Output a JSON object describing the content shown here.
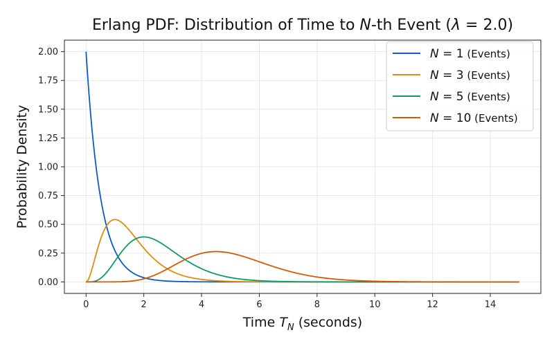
{
  "chart_data": {
    "type": "line",
    "title": "Erlang PDF: Distribution of Time to N-th Event (λ = 2.0)",
    "title_parts": {
      "prefix": "Erlang PDF: Distribution of Time to ",
      "var": "N",
      "suffix": "-th Event (",
      "lambda_sym": "λ",
      "lambda_eq": " = 2.0)"
    },
    "xlabel": "Time T_N (seconds)",
    "xlabel_parts": {
      "prefix": "Time ",
      "var": "T",
      "sub": "N",
      "suffix": " (seconds)"
    },
    "ylabel": "Probability Density",
    "xlim": [
      -0.75,
      15.75
    ],
    "ylim": [
      -0.1,
      2.1
    ],
    "x_ticks": [
      0,
      2,
      4,
      6,
      8,
      10,
      12,
      14
    ],
    "x_tick_labels": [
      "0",
      "2",
      "4",
      "6",
      "8",
      "10",
      "12",
      "14"
    ],
    "y_ticks": [
      0,
      0.25,
      0.5,
      0.75,
      1.0,
      1.25,
      1.5,
      1.75,
      2.0
    ],
    "y_tick_labels": [
      "0.00",
      "0.25",
      "0.50",
      "0.75",
      "1.00",
      "1.25",
      "1.50",
      "1.75",
      "2.00"
    ],
    "grid": true,
    "legend_position": "top-right",
    "lambda": 2.0,
    "x_range": [
      0,
      15
    ],
    "series": [
      {
        "name": "N = 1 (Events)",
        "n": 1,
        "color": "#0b5bc4",
        "legend_var": "N",
        "legend_eq": " = 1",
        "legend_suffix": " (Events)"
      },
      {
        "name": "N = 3 (Events)",
        "n": 3,
        "color": "#e08c0b",
        "legend_var": "N",
        "legend_eq": " = 3",
        "legend_suffix": " (Events)"
      },
      {
        "name": "N = 5 (Events)",
        "n": 5,
        "color": "#0b9a6e",
        "legend_var": "N",
        "legend_eq": " = 5",
        "legend_suffix": " (Events)"
      },
      {
        "name": "N = 10 (Events)",
        "n": 10,
        "color": "#d45a00",
        "legend_var": "N",
        "legend_eq": " = 10",
        "legend_suffix": " (Events)"
      }
    ]
  }
}
